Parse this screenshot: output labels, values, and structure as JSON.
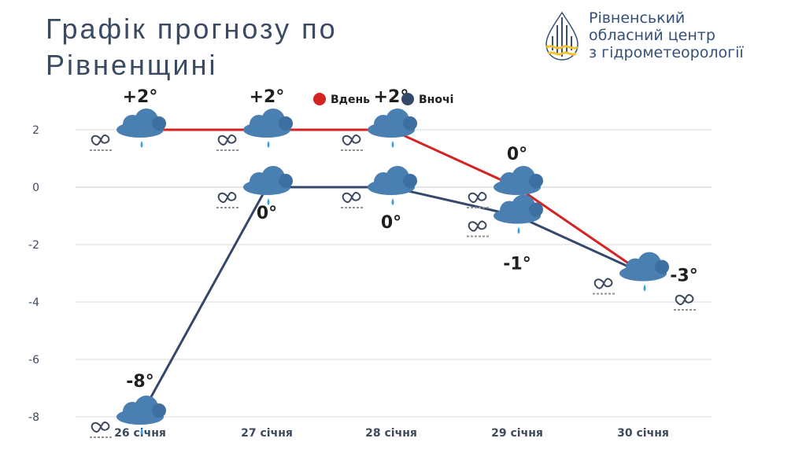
{
  "title_lines": [
    "Графік прогнозу по",
    "Рівненщині"
  ],
  "organization": {
    "lines": [
      "Рівненський",
      "обласний центр",
      "з гідрометеорології"
    ]
  },
  "icons": [
    "logo-drop-icon",
    "cloud-snow-rain-icon",
    "fog-icon"
  ],
  "colors": {
    "day": "#d32323",
    "night": "#34486b",
    "grid": "#d9dbe0",
    "axis": "#c7cad1",
    "cloud": "#4a7fb1",
    "logo_yellow": "#f2c230"
  },
  "chart_data": {
    "type": "line",
    "categories": [
      "26 січня",
      "27 січня",
      "28 січня",
      "29 січня",
      "30 січня"
    ],
    "series": [
      {
        "name": "Вдень",
        "values": [
          2,
          2,
          2,
          0,
          -3
        ],
        "labels": [
          "+2°",
          "+2°",
          "+2°",
          "0°",
          ""
        ]
      },
      {
        "name": "Вночі",
        "values": [
          -8,
          0,
          0,
          -1,
          -3
        ],
        "labels": [
          "-8°",
          "0°",
          "0°",
          "-1°",
          "-3°"
        ]
      }
    ],
    "yticks": [
      2,
      0,
      -2,
      -4,
      -6,
      -8
    ],
    "ylim": [
      -8,
      2
    ],
    "grid": true,
    "legend": "top"
  }
}
